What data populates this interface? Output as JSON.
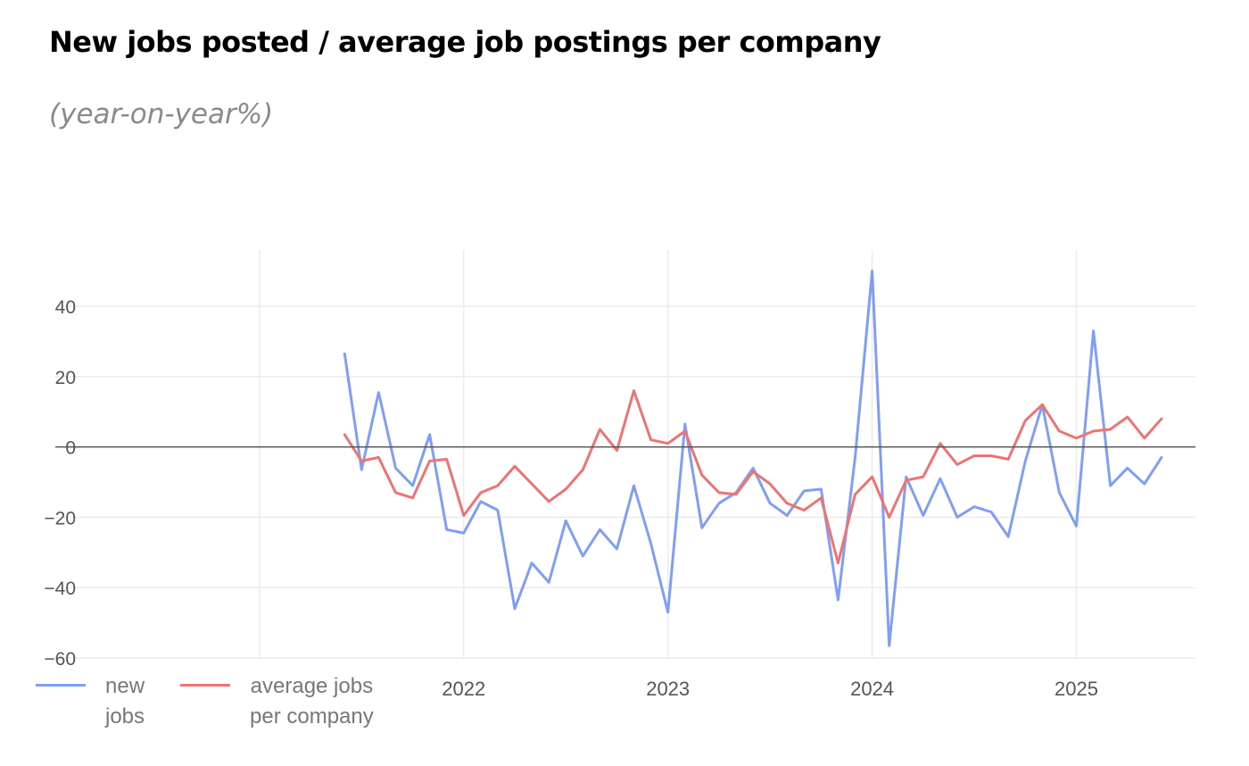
{
  "title": "New jobs posted / average job postings per company",
  "subtitle": "(year-on-year%)",
  "chart_data": {
    "type": "line",
    "y_ticks": [
      40,
      20,
      0,
      -20,
      -40,
      -60
    ],
    "y_tick_labels": [
      "40",
      "20",
      "0",
      "−20",
      "−40",
      "−60"
    ],
    "ylim": [
      -60,
      56
    ],
    "x_ticks": [
      "2021-01",
      "2022-01",
      "2023-01",
      "2024-01",
      "2025-01"
    ],
    "x_tick_labels": [
      "",
      "2022",
      "2023",
      "2024",
      "2025"
    ],
    "xlim": [
      "2020-01",
      "2025-08"
    ],
    "grid": true,
    "zero_line": true,
    "legend_position": "bottom-left",
    "series": [
      {
        "name": "new jobs",
        "color": "#7f9ef5",
        "points": [
          [
            "2021-06",
            26.5
          ],
          [
            "2021-07",
            -6.5
          ],
          [
            "2021-08",
            15.5
          ],
          [
            "2021-09",
            -6
          ],
          [
            "2021-10",
            -11
          ],
          [
            "2021-11",
            3.5
          ],
          [
            "2021-12",
            -23.5
          ],
          [
            "2022-01",
            -24.5
          ],
          [
            "2022-02",
            -15.5
          ],
          [
            "2022-03",
            -18
          ],
          [
            "2022-04",
            -46
          ],
          [
            "2022-05",
            -33
          ],
          [
            "2022-06",
            -38.5
          ],
          [
            "2022-07",
            -21
          ],
          [
            "2022-08",
            -31
          ],
          [
            "2022-09",
            -23.5
          ],
          [
            "2022-10",
            -29
          ],
          [
            "2022-11",
            -11
          ],
          [
            "2022-12",
            -27.5
          ],
          [
            "2023-01",
            -47
          ],
          [
            "2023-02",
            6.5
          ],
          [
            "2023-03",
            -23
          ],
          [
            "2023-04",
            -16
          ],
          [
            "2023-05",
            -13
          ],
          [
            "2023-06",
            -6
          ],
          [
            "2023-07",
            -16
          ],
          [
            "2023-08",
            -19.5
          ],
          [
            "2023-09",
            -12.5
          ],
          [
            "2023-10",
            -12
          ],
          [
            "2023-11",
            -43.5
          ],
          [
            "2023-12",
            -3
          ],
          [
            "2024-01",
            50
          ],
          [
            "2024-02",
            -56.5
          ],
          [
            "2024-03",
            -8.5
          ],
          [
            "2024-04",
            -19.5
          ],
          [
            "2024-05",
            -9
          ],
          [
            "2024-06",
            -20
          ],
          [
            "2024-07",
            -17
          ],
          [
            "2024-08",
            -18.5
          ],
          [
            "2024-09",
            -25.5
          ],
          [
            "2024-10",
            -4
          ],
          [
            "2024-11",
            12
          ],
          [
            "2024-12",
            -13
          ],
          [
            "2025-01",
            -22.5
          ],
          [
            "2025-02",
            33
          ],
          [
            "2025-03",
            -11
          ],
          [
            "2025-04",
            -6
          ],
          [
            "2025-05",
            -10.5
          ],
          [
            "2025-06",
            -3
          ]
        ]
      },
      {
        "name": "average jobs per company",
        "color": "#ee7474",
        "points": [
          [
            "2021-06",
            3.5
          ],
          [
            "2021-07",
            -4
          ],
          [
            "2021-08",
            -3
          ],
          [
            "2021-09",
            -13
          ],
          [
            "2021-10",
            -14.5
          ],
          [
            "2021-11",
            -4
          ],
          [
            "2021-12",
            -3.5
          ],
          [
            "2022-01",
            -19.5
          ],
          [
            "2022-02",
            -13
          ],
          [
            "2022-03",
            -11
          ],
          [
            "2022-04",
            -5.5
          ],
          [
            "2022-05",
            -10.5
          ],
          [
            "2022-06",
            -15.5
          ],
          [
            "2022-07",
            -12
          ],
          [
            "2022-08",
            -6.5
          ],
          [
            "2022-09",
            5
          ],
          [
            "2022-10",
            -1
          ],
          [
            "2022-11",
            16
          ],
          [
            "2022-12",
            2
          ],
          [
            "2023-01",
            1
          ],
          [
            "2023-02",
            4.5
          ],
          [
            "2023-03",
            -8
          ],
          [
            "2023-04",
            -13
          ],
          [
            "2023-05",
            -13.5
          ],
          [
            "2023-06",
            -7
          ],
          [
            "2023-07",
            -10.5
          ],
          [
            "2023-08",
            -16
          ],
          [
            "2023-09",
            -18
          ],
          [
            "2023-10",
            -14.5
          ],
          [
            "2023-11",
            -33
          ],
          [
            "2023-12",
            -13.5
          ],
          [
            "2024-01",
            -8.5
          ],
          [
            "2024-02",
            -20
          ],
          [
            "2024-03",
            -9.5
          ],
          [
            "2024-04",
            -8.5
          ],
          [
            "2024-05",
            1
          ],
          [
            "2024-06",
            -5
          ],
          [
            "2024-07",
            -2.5
          ],
          [
            "2024-08",
            -2.5
          ],
          [
            "2024-09",
            -3.5
          ],
          [
            "2024-10",
            7.5
          ],
          [
            "2024-11",
            12
          ],
          [
            "2024-12",
            4.5
          ],
          [
            "2025-01",
            2.5
          ],
          [
            "2025-02",
            4.5
          ],
          [
            "2025-03",
            5
          ],
          [
            "2025-04",
            8.5
          ],
          [
            "2025-05",
            2.5
          ],
          [
            "2025-06",
            8
          ]
        ]
      }
    ]
  },
  "legend": {
    "items": [
      {
        "line1": "new",
        "line2": "jobs"
      },
      {
        "line1": "average jobs",
        "line2": "per company"
      }
    ]
  }
}
